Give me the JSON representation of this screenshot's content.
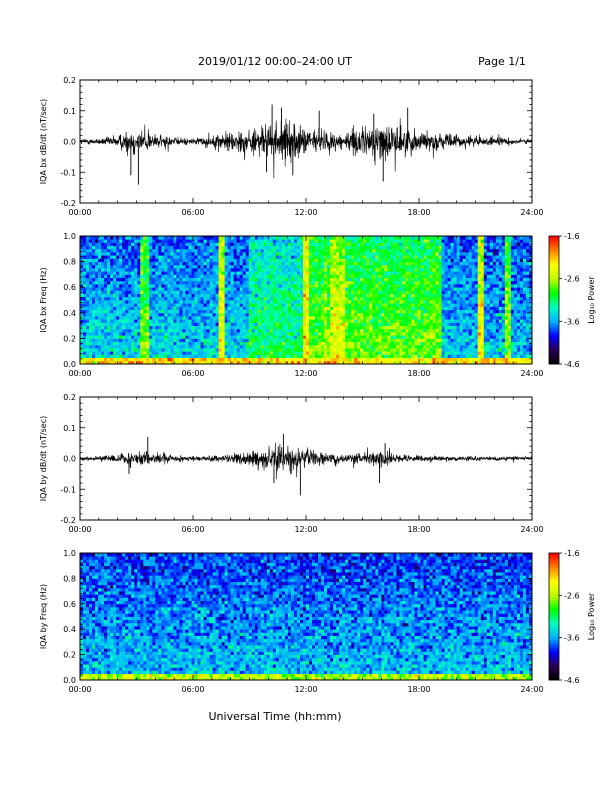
{
  "page": {
    "title": "2019/01/12  00:00–24:00 UT",
    "page_label": "Page 1/1",
    "x_title": "Universal Time (hh:mm)"
  },
  "chart_data": [
    {
      "type": "line",
      "id": "bx_waveform",
      "ylabel": "IQA bx dB/dt (nT/sec)",
      "xlim": [
        0,
        24
      ],
      "ylim": [
        -0.2,
        0.2
      ],
      "xticks": [
        "00:00",
        "06:00",
        "12:00",
        "18:00",
        "24:00"
      ],
      "yticks": [
        "-0.2",
        "-0.1",
        "0.0",
        "0.1",
        "0.2"
      ],
      "ytick_values": [
        -0.2,
        -0.1,
        0.0,
        0.1,
        0.2
      ],
      "envelope": {
        "hours": [
          0,
          1,
          2,
          2.8,
          3.2,
          4,
          5,
          6,
          7,
          7.5,
          8,
          9,
          10,
          10.5,
          11,
          11.5,
          12,
          13,
          14,
          15,
          15.5,
          16,
          16.5,
          17,
          18,
          19,
          20,
          21,
          22,
          23,
          24
        ],
        "amplitude": [
          0.015,
          0.015,
          0.03,
          0.07,
          0.06,
          0.035,
          0.02,
          0.015,
          0.025,
          0.04,
          0.05,
          0.06,
          0.08,
          0.1,
          0.09,
          0.08,
          0.06,
          0.05,
          0.04,
          0.07,
          0.08,
          0.09,
          0.08,
          0.07,
          0.05,
          0.04,
          0.03,
          0.025,
          0.02,
          0.015,
          0.01
        ]
      },
      "spikes": [
        {
          "hour": 3.1,
          "value": -0.14
        },
        {
          "hour": 2.7,
          "value": -0.11
        },
        {
          "hour": 10.2,
          "value": 0.12
        },
        {
          "hour": 10.7,
          "value": 0.11
        },
        {
          "hour": 9.9,
          "value": -0.1
        },
        {
          "hour": 11.3,
          "value": -0.11
        },
        {
          "hour": 12.7,
          "value": 0.1
        },
        {
          "hour": 16.1,
          "value": -0.13
        },
        {
          "hour": 15.6,
          "value": 0.09
        },
        {
          "hour": 17.4,
          "value": 0.11
        }
      ]
    },
    {
      "type": "heatmap",
      "id": "bx_spectrogram",
      "ylabel": "IQA bx Freq (Hz)",
      "xlim": [
        0,
        24
      ],
      "ylim": [
        0,
        1.0
      ],
      "xticks": [
        "00:00",
        "06:00",
        "12:00",
        "18:00",
        "24:00"
      ],
      "yticks": [
        "0.0",
        "0.2",
        "0.4",
        "0.6",
        "0.8",
        "1.0"
      ],
      "ytick_values": [
        0,
        0.2,
        0.4,
        0.6,
        0.8,
        1.0
      ],
      "colorbar": {
        "label": "Log₁₀ Power",
        "range": [
          -4.6,
          -1.6
        ],
        "ticks": [
          "-1.6",
          "-2.6",
          "-3.6",
          "-4.6"
        ],
        "tick_values": [
          -1.6,
          -2.6,
          -3.6,
          -4.6
        ],
        "colors": [
          "#000000",
          "#2a004f",
          "#0000ff",
          "#00b0ff",
          "#00ffc0",
          "#00ff00",
          "#c0ff00",
          "#ffff00",
          "#ff8000",
          "#ff0000"
        ]
      },
      "background_level": [
        {
          "from": 0,
          "to": 9,
          "level": -3.65
        },
        {
          "from": 9,
          "to": 12,
          "level": -3.3
        },
        {
          "from": 12,
          "to": 19,
          "level": -3.0
        },
        {
          "from": 19,
          "to": 24,
          "level": -3.7
        }
      ],
      "vertical_bands": [
        {
          "start": 3.2,
          "end": 3.6,
          "level": -2.9
        },
        {
          "start": 7.3,
          "end": 7.6,
          "level": -2.5
        },
        {
          "start": 11.8,
          "end": 12.1,
          "level": -2.4
        },
        {
          "start": 12.9,
          "end": 13.2,
          "level": -2.8
        },
        {
          "start": 13.3,
          "end": 14.0,
          "level": -2.6
        },
        {
          "start": 18.8,
          "end": 19.2,
          "level": -2.9
        },
        {
          "start": 21.2,
          "end": 21.5,
          "level": -2.5
        },
        {
          "start": 22.6,
          "end": 22.8,
          "level": -2.9
        }
      ],
      "low_freq_level": -2.2
    },
    {
      "type": "line",
      "id": "by_waveform",
      "ylabel": "IQA by dB/dt (nT/sec)",
      "xlim": [
        0,
        24
      ],
      "ylim": [
        -0.2,
        0.2
      ],
      "xticks": [
        "00:00",
        "06:00",
        "12:00",
        "18:00",
        "24:00"
      ],
      "yticks": [
        "-0.2",
        "-0.1",
        "0.0",
        "0.1",
        "0.2"
      ],
      "ytick_values": [
        -0.2,
        -0.1,
        0.0,
        0.1,
        0.2
      ],
      "envelope": {
        "hours": [
          0,
          1,
          2,
          2.8,
          3.5,
          4,
          5,
          6,
          7,
          8,
          9,
          10,
          10.5,
          11,
          11.5,
          12,
          13,
          14,
          15,
          15.5,
          16,
          17,
          18,
          19,
          20,
          21,
          22,
          23,
          24
        ],
        "amplitude": [
          0.01,
          0.012,
          0.02,
          0.035,
          0.04,
          0.03,
          0.015,
          0.012,
          0.015,
          0.02,
          0.035,
          0.05,
          0.06,
          0.055,
          0.05,
          0.04,
          0.025,
          0.02,
          0.025,
          0.035,
          0.04,
          0.02,
          0.015,
          0.012,
          0.01,
          0.01,
          0.01,
          0.01,
          0.008
        ]
      },
      "spikes": [
        {
          "hour": 3.6,
          "value": 0.07
        },
        {
          "hour": 2.6,
          "value": -0.05
        },
        {
          "hour": 11.7,
          "value": -0.12
        },
        {
          "hour": 10.8,
          "value": 0.08
        },
        {
          "hour": 10.3,
          "value": -0.08
        },
        {
          "hour": 15.9,
          "value": -0.08
        },
        {
          "hour": 16.2,
          "value": 0.05
        }
      ]
    },
    {
      "type": "heatmap",
      "id": "by_spectrogram",
      "ylabel": "IQA by Freq (Hz)",
      "xlim": [
        0,
        24
      ],
      "ylim": [
        0,
        1.0
      ],
      "xticks": [
        "00:00",
        "06:00",
        "12:00",
        "18:00",
        "24:00"
      ],
      "yticks": [
        "0.0",
        "0.2",
        "0.4",
        "0.6",
        "0.8",
        "1.0"
      ],
      "ytick_values": [
        0,
        0.2,
        0.4,
        0.6,
        0.8,
        1.0
      ],
      "colorbar": {
        "label": "Log₁₀ Power",
        "range": [
          -4.6,
          -1.6
        ],
        "ticks": [
          "-1.6",
          "-2.6",
          "-3.6",
          "-4.6"
        ],
        "tick_values": [
          -1.6,
          -2.6,
          -3.6,
          -4.6
        ],
        "colors": [
          "#000000",
          "#2a004f",
          "#0000ff",
          "#00b0ff",
          "#00ffc0",
          "#00ff00",
          "#c0ff00",
          "#ffff00",
          "#ff8000",
          "#ff0000"
        ]
      },
      "background_level": [
        {
          "from": 0,
          "to": 24,
          "level": -3.75
        }
      ],
      "vertical_bands": [],
      "low_freq_level": -2.6
    }
  ]
}
